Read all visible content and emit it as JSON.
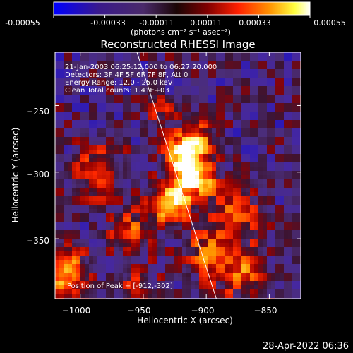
{
  "colorbar": {
    "tick_labels": [
      "-0.00055",
      "-0.00033",
      "-0.00011",
      "0.00011",
      "0.00033",
      "0.00055"
    ],
    "unit_label": "(photons cm⁻² s⁻¹ asec⁻²)",
    "range": [
      -0.00055,
      0.00055
    ],
    "colors": [
      "#0000ff",
      "#3a1a8a",
      "#4a2a6a",
      "#2a0a0a",
      "#800000",
      "#ff2000",
      "#ff9000",
      "#ffff40",
      "#ffffff"
    ]
  },
  "chart_data": {
    "type": "heatmap",
    "title": "Reconstructed RHESSI Image",
    "xlabel": "Heliocentric X (arcsec)",
    "ylabel": "Heliocentric Y (arcsec)",
    "xlim": [
      -1020,
      -825
    ],
    "ylim": [
      -395,
      -210
    ],
    "x_ticks": [
      -1000,
      -950,
      -900,
      -850
    ],
    "y_ticks": [
      -250,
      -300,
      -350
    ],
    "x_tick_labels": [
      "−1000",
      "−950",
      "−900",
      "−850"
    ],
    "y_tick_labels": [
      "−250",
      "−300",
      "−350"
    ],
    "annotations": [
      "21-Jan-2003 06:25:12.000 to 06:27:20.000",
      "Detectors: 3F 4F 5F 6F 7F 8F, Att 0",
      "Energy Range: 12.0 - 25.0 keV",
      "Clean     Total counts: 1.41E+03"
    ],
    "peak_label": "Position of Peak = [-912,-302]",
    "peak": [
      -912,
      -302
    ],
    "limb_line": {
      "x": [
        -955,
        -892
      ],
      "y": [
        -210,
        -395
      ]
    }
  },
  "timestamp": "28-Apr-2022 06:36"
}
